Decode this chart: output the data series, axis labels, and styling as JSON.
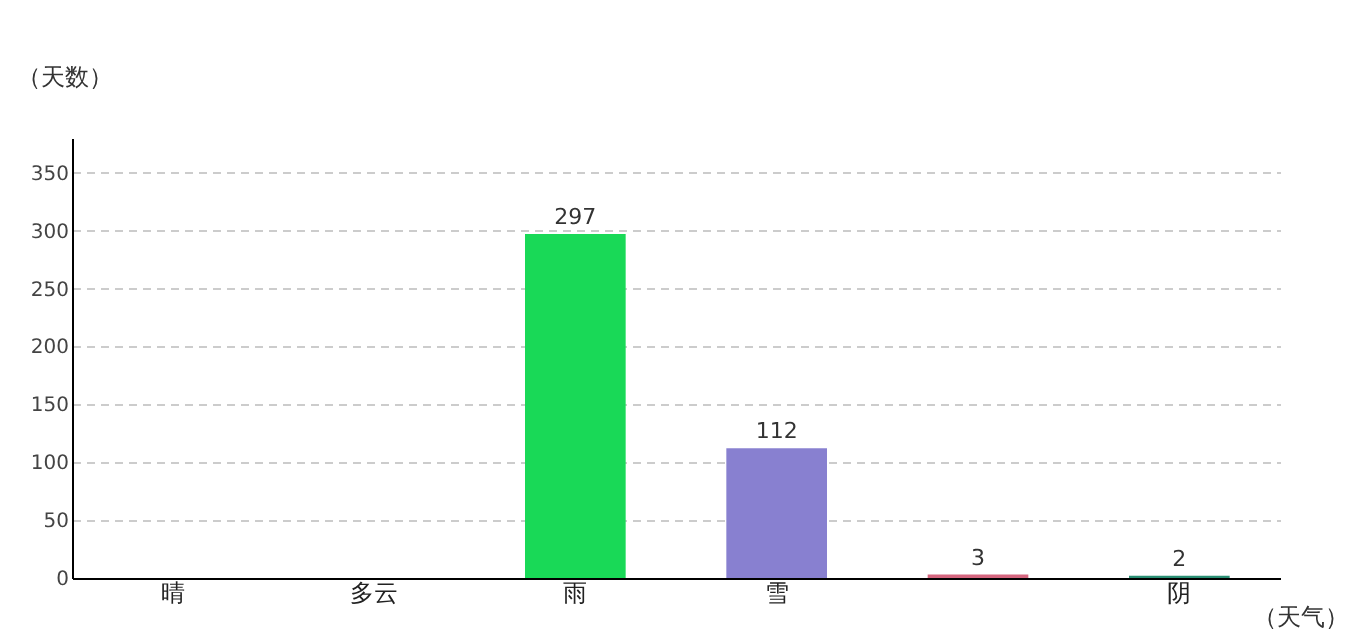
{
  "chart_data": {
    "type": "bar",
    "xlabel": "（天气）",
    "ylabel": "（天数）",
    "categories": [
      "晴",
      "多云",
      "雨",
      "雪",
      null,
      "阴"
    ],
    "values": [
      null,
      null,
      297,
      112,
      3,
      2
    ],
    "colors": [
      "#9b27e8",
      "#72f965",
      "#19d957",
      "#8880d0",
      "#d5667f",
      "#2a8f74"
    ],
    "value_labels": [
      null,
      null,
      "297",
      "112",
      "3",
      "2"
    ],
    "ylim": [
      0,
      380
    ],
    "yticks": [
      0,
      50,
      100,
      150,
      200,
      250,
      300,
      350
    ],
    "grid": "y"
  }
}
